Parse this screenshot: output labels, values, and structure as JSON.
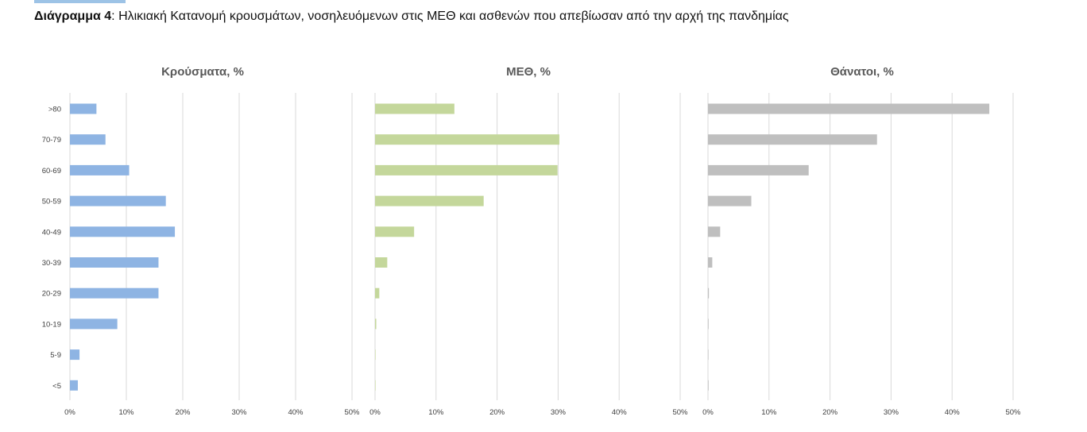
{
  "caption": {
    "label": "Διάγραμμα 4",
    "text": ": Ηλικιακή Κατανομή κρουσμάτων, νοσηλευόμενων στις ΜΕΘ και ασθενών που απεβίωσαν από την αρχή της πανδημίας"
  },
  "colors": {
    "highlight": "#9dc3e6",
    "grid": "#d9d9d9"
  },
  "chart_data": [
    {
      "type": "bar",
      "orientation": "horizontal",
      "title": "Κρούσματα, %",
      "categories": [
        ">80",
        "70-79",
        "60-69",
        "50-59",
        "40-49",
        "30-39",
        "20-29",
        "10-19",
        "5-9",
        "<5"
      ],
      "values": [
        4.7,
        6.3,
        10.5,
        17.0,
        18.6,
        15.7,
        15.7,
        8.4,
        1.7,
        1.4
      ],
      "xlim": [
        0,
        50
      ],
      "xticks": [
        "0%",
        "10%",
        "20%",
        "30%",
        "40%",
        "50%"
      ],
      "color": "#8eb4e3",
      "grid": true
    },
    {
      "type": "bar",
      "orientation": "horizontal",
      "title": "ΜΕΘ, %",
      "categories": [
        ">80",
        "70-79",
        "60-69",
        "50-59",
        "40-49",
        "30-39",
        "20-29",
        "10-19",
        "5-9",
        "<5"
      ],
      "values": [
        13.0,
        30.2,
        29.9,
        17.8,
        6.4,
        2.0,
        0.7,
        0.2,
        0.05,
        0.05
      ],
      "xlim": [
        0,
        50
      ],
      "xticks": [
        "0%",
        "10%",
        "20%",
        "30%",
        "40%",
        "50%"
      ],
      "color": "#c4d79b",
      "grid": true
    },
    {
      "type": "bar",
      "orientation": "horizontal",
      "title": "Θάνατοι, %",
      "categories": [
        ">80",
        "70-79",
        "60-69",
        "50-59",
        "40-49",
        "30-39",
        "20-29",
        "10-19",
        "5-9",
        "<5"
      ],
      "values": [
        46.1,
        27.7,
        16.5,
        7.1,
        2.0,
        0.7,
        0.15,
        0.1,
        0.0,
        0.1
      ],
      "xlim": [
        0,
        50
      ],
      "xticks": [
        "0%",
        "10%",
        "20%",
        "30%",
        "40%",
        "50%"
      ],
      "color": "#bfbfbf",
      "grid": true
    }
  ]
}
